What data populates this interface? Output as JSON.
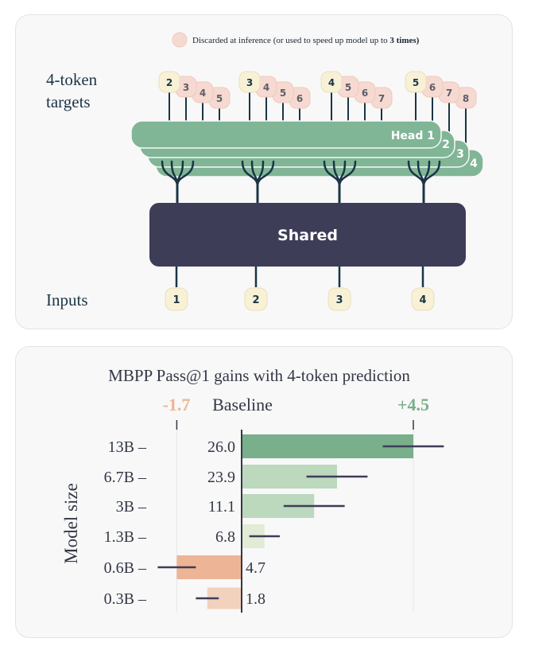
{
  "legend": {
    "text_plain": "Discarded at inference (or used to speed up model up to ",
    "text_bold": "3 times)"
  },
  "diagram": {
    "targets_label_line1": "4-token",
    "targets_label_line2": "targets",
    "inputs_label": "Inputs",
    "shared_label": "Shared",
    "head_labels": [
      "Head 1",
      "2",
      "3",
      "4"
    ],
    "inputs": [
      "1",
      "2",
      "3",
      "4"
    ],
    "target_groups": [
      [
        "2",
        "3",
        "4",
        "5"
      ],
      [
        "3",
        "4",
        "5",
        "6"
      ],
      [
        "4",
        "5",
        "6",
        "7"
      ],
      [
        "5",
        "6",
        "7",
        "8"
      ]
    ]
  },
  "colors": {
    "head_green": "#80b596",
    "shared_navy": "#3e3d58",
    "root_navy": "#1a3545",
    "token_cream": "#f8f1d6",
    "discard_pink": "#f6dad2",
    "gain_green": "#7aaf8c",
    "light_green": "#bcd8bd",
    "pale_green": "#e2ebd5",
    "loss_orange": "#eeb496",
    "loss_light": "#f2d1bd"
  },
  "chart_data": {
    "type": "bar",
    "title": "MBPP Pass@1  gains with 4-token prediction",
    "ylabel": "Model size",
    "baseline_label": "Baseline",
    "min_label": "-1.7",
    "max_label": "+4.5",
    "xlim": [
      -1.7,
      4.5
    ],
    "categories": [
      "13B",
      "6.7B",
      "3B",
      "1.3B",
      "0.6B",
      "0.3B"
    ],
    "baseline_values": [
      "26.0",
      "23.9",
      "11.1",
      "6.8",
      "4.7",
      "1.8"
    ],
    "gains": [
      4.5,
      2.5,
      1.9,
      0.6,
      -1.7,
      -0.9
    ],
    "errors": [
      0.8,
      0.8,
      0.8,
      0.4,
      0.5,
      0.3
    ]
  }
}
